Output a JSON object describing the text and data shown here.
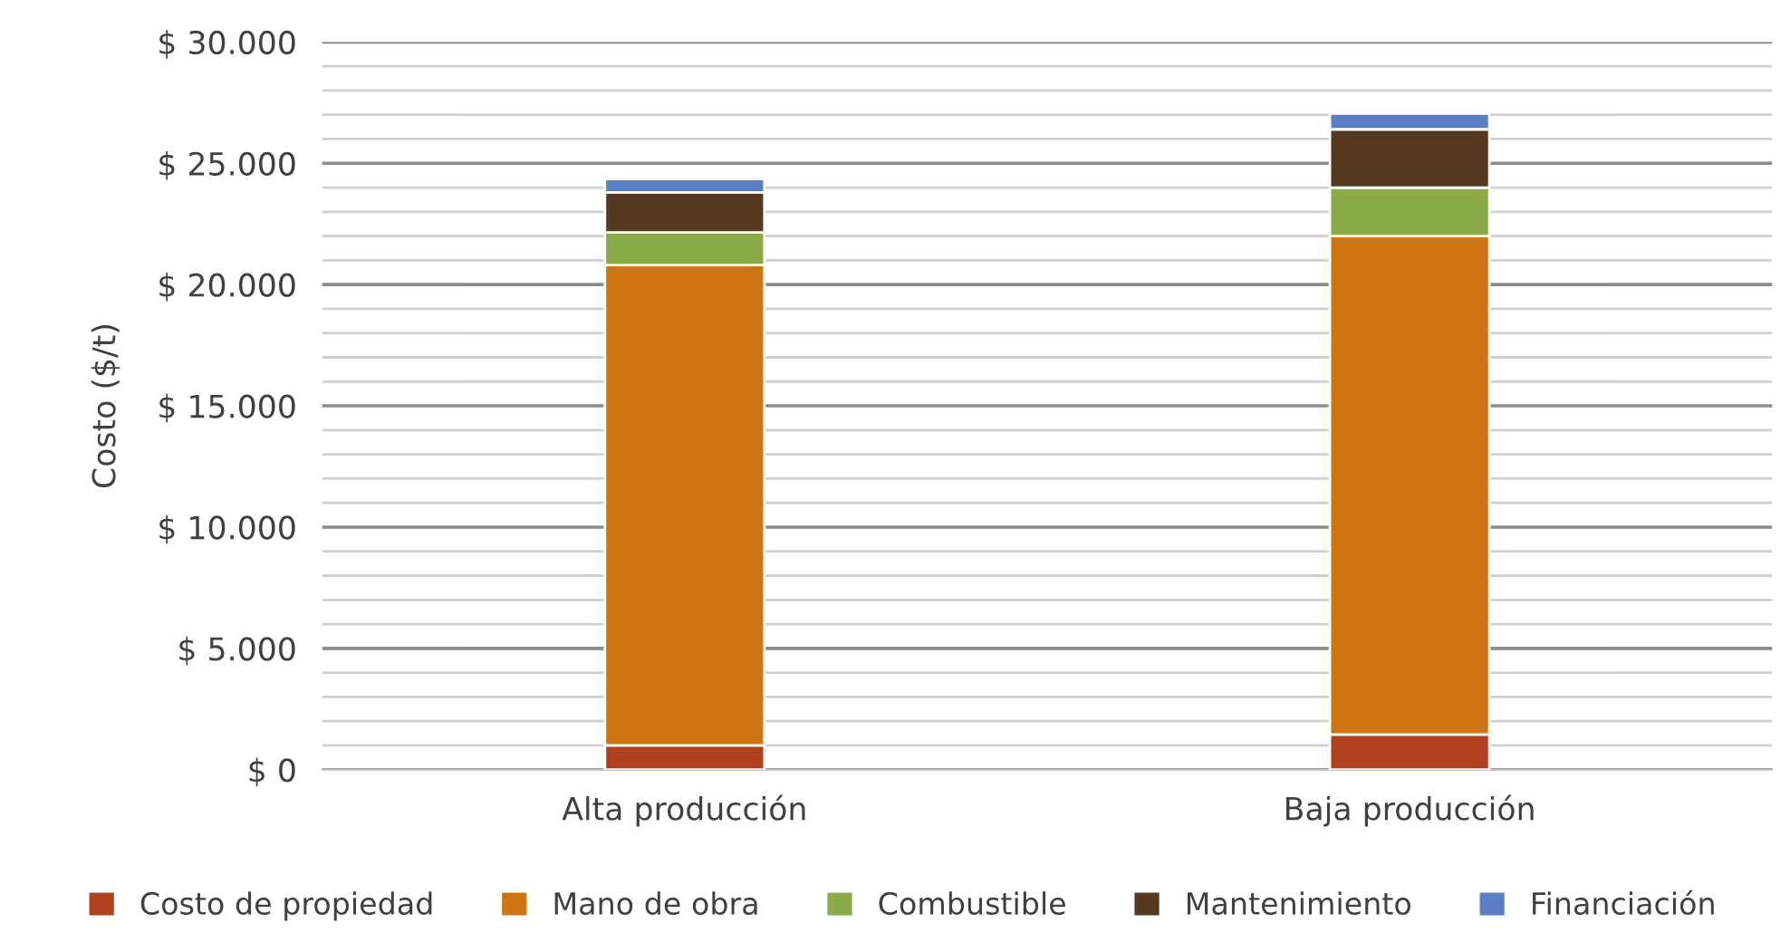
{
  "chart_data": {
    "type": "bar",
    "stacked": true,
    "ylabel": "Costo ($/t)",
    "categories": [
      "Alta producción",
      "Baja producción"
    ],
    "series": [
      {
        "name": "Costo de propiedad",
        "color": "#b0411f",
        "values": [
          1000,
          1450
        ]
      },
      {
        "name": "Mano de obra",
        "color": "#d07513",
        "values": [
          19800,
          20550
        ]
      },
      {
        "name": "Combustible",
        "color": "#8bab48",
        "values": [
          1350,
          2000
        ]
      },
      {
        "name": "Mantenimiento",
        "color": "#553921",
        "values": [
          1650,
          2400
        ]
      },
      {
        "name": "Financiación",
        "color": "#5a7fc2",
        "values": [
          550,
          650
        ]
      }
    ],
    "ylim": [
      0,
      30000
    ],
    "yticks": [
      {
        "value": 0,
        "label": "$ 0"
      },
      {
        "value": 1000,
        "label": null
      },
      {
        "value": 2000,
        "label": null
      },
      {
        "value": 3000,
        "label": null
      },
      {
        "value": 4000,
        "label": null
      },
      {
        "value": 5000,
        "label": "$ 5.000"
      },
      {
        "value": 6000,
        "label": null
      },
      {
        "value": 7000,
        "label": null
      },
      {
        "value": 8000,
        "label": null
      },
      {
        "value": 9000,
        "label": null
      },
      {
        "value": 10000,
        "label": "$ 10.000"
      },
      {
        "value": 11000,
        "label": null
      },
      {
        "value": 12000,
        "label": null
      },
      {
        "value": 13000,
        "label": null
      },
      {
        "value": 14000,
        "label": null
      },
      {
        "value": 15000,
        "label": "$ 15.000"
      },
      {
        "value": 16000,
        "label": null
      },
      {
        "value": 17000,
        "label": null
      },
      {
        "value": 18000,
        "label": null
      },
      {
        "value": 19000,
        "label": null
      },
      {
        "value": 20000,
        "label": "$ 20.000"
      },
      {
        "value": 21000,
        "label": null
      },
      {
        "value": 22000,
        "label": null
      },
      {
        "value": 23000,
        "label": null
      },
      {
        "value": 24000,
        "label": null
      },
      {
        "value": 25000,
        "label": "$ 25.000"
      },
      {
        "value": 26000,
        "label": null
      },
      {
        "value": 27000,
        "label": null
      },
      {
        "value": 28000,
        "label": null
      },
      {
        "value": 29000,
        "label": null
      },
      {
        "value": 30000,
        "label": "$ 30.000"
      }
    ],
    "grid": "y",
    "legend": "bottom"
  }
}
